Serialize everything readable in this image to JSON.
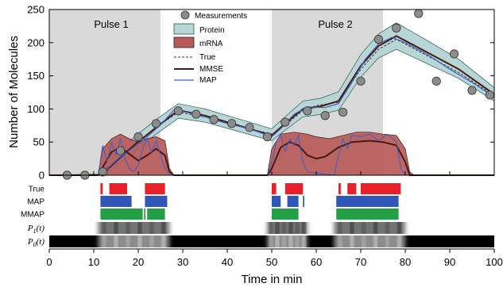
{
  "chart_data": {
    "type": "line",
    "ylabel": "Number of Molecules",
    "xlabel": "Time in min",
    "xlim": [
      0,
      100
    ],
    "ylim": [
      0,
      250
    ],
    "x_ticks": [
      "0",
      "10",
      "20",
      "30",
      "40",
      "50",
      "60",
      "70",
      "80",
      "90",
      "100"
    ],
    "y_ticks": [
      "0",
      "50",
      "100",
      "150",
      "200",
      "250"
    ],
    "pulses": [
      {
        "label": "Pulse 1",
        "start": 0,
        "end": 25
      },
      {
        "label": "Pulse 2",
        "start": 50,
        "end": 75
      }
    ],
    "legend": {
      "measurements": "Measurements",
      "protein": "Protein",
      "mrna": "mRNA",
      "true": "True",
      "mmse": "MMSE",
      "map": "MAP"
    },
    "colors": {
      "pulse_shade": "#d9d9d9",
      "protein_fill": "#b9d6d6",
      "mrna_fill": "#b85a5a",
      "measurement": "#8c8c8c",
      "mmse_line": "#4a1a12",
      "map_line": "#3a5fc8",
      "true_line": "#333333",
      "track_true": "#e8202a",
      "track_map": "#2f56b8",
      "track_mmap": "#23a046"
    },
    "measurements": [
      {
        "x": 4,
        "y": 0
      },
      {
        "x": 8,
        "y": 0
      },
      {
        "x": 12,
        "y": 5
      },
      {
        "x": 16,
        "y": 37
      },
      {
        "x": 20,
        "y": 58
      },
      {
        "x": 24,
        "y": 78
      },
      {
        "x": 29,
        "y": 97
      },
      {
        "x": 33,
        "y": 92
      },
      {
        "x": 37,
        "y": 84
      },
      {
        "x": 41,
        "y": 78
      },
      {
        "x": 45,
        "y": 72
      },
      {
        "x": 49,
        "y": 58
      },
      {
        "x": 53,
        "y": 80
      },
      {
        "x": 58,
        "y": 97
      },
      {
        "x": 62,
        "y": 90
      },
      {
        "x": 66,
        "y": 95
      },
      {
        "x": 70,
        "y": 142
      },
      {
        "x": 74,
        "y": 205
      },
      {
        "x": 78,
        "y": 222
      },
      {
        "x": 83,
        "y": 244
      },
      {
        "x": 87,
        "y": 142
      },
      {
        "x": 91,
        "y": 183
      },
      {
        "x": 95,
        "y": 128
      },
      {
        "x": 99,
        "y": 121
      }
    ],
    "protein_true": [
      {
        "x": 0,
        "y": 0
      },
      {
        "x": 12,
        "y": 0
      },
      {
        "x": 15,
        "y": 20
      },
      {
        "x": 20,
        "y": 50
      },
      {
        "x": 25,
        "y": 77
      },
      {
        "x": 29,
        "y": 95
      },
      {
        "x": 35,
        "y": 88
      },
      {
        "x": 42,
        "y": 75
      },
      {
        "x": 50,
        "y": 62
      },
      {
        "x": 53,
        "y": 75
      },
      {
        "x": 57,
        "y": 98
      },
      {
        "x": 60,
        "y": 105
      },
      {
        "x": 65,
        "y": 110
      },
      {
        "x": 70,
        "y": 160
      },
      {
        "x": 74,
        "y": 190
      },
      {
        "x": 78,
        "y": 205
      },
      {
        "x": 85,
        "y": 180
      },
      {
        "x": 92,
        "y": 155
      },
      {
        "x": 100,
        "y": 120
      }
    ],
    "protein_mmse": [
      {
        "x": 0,
        "y": 0
      },
      {
        "x": 11,
        "y": 0
      },
      {
        "x": 14,
        "y": 15
      },
      {
        "x": 19,
        "y": 45
      },
      {
        "x": 24,
        "y": 72
      },
      {
        "x": 29,
        "y": 98
      },
      {
        "x": 35,
        "y": 90
      },
      {
        "x": 42,
        "y": 76
      },
      {
        "x": 50,
        "y": 60
      },
      {
        "x": 53,
        "y": 78
      },
      {
        "x": 57,
        "y": 100
      },
      {
        "x": 61,
        "y": 104
      },
      {
        "x": 65,
        "y": 112
      },
      {
        "x": 70,
        "y": 165
      },
      {
        "x": 74,
        "y": 195
      },
      {
        "x": 78,
        "y": 210
      },
      {
        "x": 85,
        "y": 185
      },
      {
        "x": 92,
        "y": 160
      },
      {
        "x": 100,
        "y": 122
      }
    ],
    "protein_lower": [
      {
        "x": 0,
        "y": 0
      },
      {
        "x": 11,
        "y": 0
      },
      {
        "x": 14,
        "y": 8
      },
      {
        "x": 19,
        "y": 35
      },
      {
        "x": 24,
        "y": 62
      },
      {
        "x": 29,
        "y": 86
      },
      {
        "x": 35,
        "y": 80
      },
      {
        "x": 42,
        "y": 67
      },
      {
        "x": 50,
        "y": 52
      },
      {
        "x": 53,
        "y": 68
      },
      {
        "x": 57,
        "y": 88
      },
      {
        "x": 61,
        "y": 92
      },
      {
        "x": 65,
        "y": 98
      },
      {
        "x": 70,
        "y": 148
      },
      {
        "x": 74,
        "y": 177
      },
      {
        "x": 78,
        "y": 190
      },
      {
        "x": 85,
        "y": 168
      },
      {
        "x": 92,
        "y": 146
      },
      {
        "x": 100,
        "y": 112
      }
    ],
    "protein_upper": [
      {
        "x": 0,
        "y": 0
      },
      {
        "x": 11,
        "y": 2
      },
      {
        "x": 14,
        "y": 24
      },
      {
        "x": 19,
        "y": 57
      },
      {
        "x": 24,
        "y": 84
      },
      {
        "x": 29,
        "y": 108
      },
      {
        "x": 35,
        "y": 100
      },
      {
        "x": 42,
        "y": 86
      },
      {
        "x": 50,
        "y": 70
      },
      {
        "x": 53,
        "y": 88
      },
      {
        "x": 57,
        "y": 112
      },
      {
        "x": 61,
        "y": 116
      },
      {
        "x": 65,
        "y": 126
      },
      {
        "x": 70,
        "y": 182
      },
      {
        "x": 74,
        "y": 213
      },
      {
        "x": 78,
        "y": 230
      },
      {
        "x": 85,
        "y": 203
      },
      {
        "x": 92,
        "y": 175
      },
      {
        "x": 100,
        "y": 132
      }
    ],
    "protein_map": [
      {
        "x": 0,
        "y": 0
      },
      {
        "x": 11,
        "y": 0
      },
      {
        "x": 13,
        "y": 10
      },
      {
        "x": 16,
        "y": 28
      },
      {
        "x": 19,
        "y": 42
      },
      {
        "x": 22,
        "y": 58
      },
      {
        "x": 25,
        "y": 76
      },
      {
        "x": 28,
        "y": 98
      },
      {
        "x": 31,
        "y": 95
      },
      {
        "x": 35,
        "y": 88
      },
      {
        "x": 40,
        "y": 78
      },
      {
        "x": 45,
        "y": 70
      },
      {
        "x": 50,
        "y": 58
      },
      {
        "x": 52,
        "y": 70
      },
      {
        "x": 55,
        "y": 92
      },
      {
        "x": 58,
        "y": 103
      },
      {
        "x": 62,
        "y": 102
      },
      {
        "x": 65,
        "y": 108
      },
      {
        "x": 68,
        "y": 140
      },
      {
        "x": 71,
        "y": 175
      },
      {
        "x": 74,
        "y": 198
      },
      {
        "x": 77,
        "y": 208
      },
      {
        "x": 80,
        "y": 200
      },
      {
        "x": 85,
        "y": 182
      },
      {
        "x": 90,
        "y": 160
      },
      {
        "x": 95,
        "y": 140
      },
      {
        "x": 100,
        "y": 118
      }
    ],
    "mrna_upper": [
      {
        "x": 0,
        "y": 0
      },
      {
        "x": 11,
        "y": 0
      },
      {
        "x": 12,
        "y": 40
      },
      {
        "x": 14,
        "y": 55
      },
      {
        "x": 16,
        "y": 62
      },
      {
        "x": 18,
        "y": 55
      },
      {
        "x": 20,
        "y": 50
      },
      {
        "x": 22,
        "y": 55
      },
      {
        "x": 24,
        "y": 58
      },
      {
        "x": 26,
        "y": 52
      },
      {
        "x": 27,
        "y": 10
      },
      {
        "x": 28,
        "y": 0
      },
      {
        "x": 49,
        "y": 0
      },
      {
        "x": 50,
        "y": 40
      },
      {
        "x": 52,
        "y": 62
      },
      {
        "x": 55,
        "y": 65
      },
      {
        "x": 58,
        "y": 62
      },
      {
        "x": 60,
        "y": 58
      },
      {
        "x": 63,
        "y": 55
      },
      {
        "x": 66,
        "y": 60
      },
      {
        "x": 69,
        "y": 65
      },
      {
        "x": 72,
        "y": 65
      },
      {
        "x": 75,
        "y": 62
      },
      {
        "x": 78,
        "y": 60
      },
      {
        "x": 80,
        "y": 40
      },
      {
        "x": 81,
        "y": 5
      },
      {
        "x": 82,
        "y": 0
      },
      {
        "x": 100,
        "y": 0
      }
    ],
    "mrna_lower": [
      {
        "x": 0,
        "y": 0
      },
      {
        "x": 100,
        "y": 0
      }
    ],
    "mrna_mmse": [
      {
        "x": 0,
        "y": 0
      },
      {
        "x": 11,
        "y": 0
      },
      {
        "x": 12,
        "y": 12
      },
      {
        "x": 14,
        "y": 35
      },
      {
        "x": 16,
        "y": 42
      },
      {
        "x": 18,
        "y": 32
      },
      {
        "x": 20,
        "y": 22
      },
      {
        "x": 22,
        "y": 30
      },
      {
        "x": 24,
        "y": 40
      },
      {
        "x": 26,
        "y": 30
      },
      {
        "x": 27,
        "y": 5
      },
      {
        "x": 28,
        "y": 0
      },
      {
        "x": 49,
        "y": 0
      },
      {
        "x": 50,
        "y": 10
      },
      {
        "x": 52,
        "y": 42
      },
      {
        "x": 54,
        "y": 50
      },
      {
        "x": 56,
        "y": 45
      },
      {
        "x": 58,
        "y": 30
      },
      {
        "x": 60,
        "y": 25
      },
      {
        "x": 62,
        "y": 28
      },
      {
        "x": 65,
        "y": 42
      },
      {
        "x": 68,
        "y": 50
      },
      {
        "x": 72,
        "y": 52
      },
      {
        "x": 75,
        "y": 50
      },
      {
        "x": 78,
        "y": 45
      },
      {
        "x": 80,
        "y": 20
      },
      {
        "x": 81,
        "y": 0
      },
      {
        "x": 100,
        "y": 0
      }
    ],
    "mrna_map": [
      {
        "x": 0,
        "y": 0
      },
      {
        "x": 11,
        "y": 0
      },
      {
        "x": 12,
        "y": 45
      },
      {
        "x": 13,
        "y": 20
      },
      {
        "x": 14,
        "y": 50
      },
      {
        "x": 15,
        "y": 30
      },
      {
        "x": 16,
        "y": 55
      },
      {
        "x": 17,
        "y": 25
      },
      {
        "x": 18,
        "y": 10
      },
      {
        "x": 19,
        "y": 5
      },
      {
        "x": 20,
        "y": 15
      },
      {
        "x": 21,
        "y": 40
      },
      {
        "x": 22,
        "y": 55
      },
      {
        "x": 23,
        "y": 35
      },
      {
        "x": 24,
        "y": 52
      },
      {
        "x": 25,
        "y": 30
      },
      {
        "x": 26,
        "y": 10
      },
      {
        "x": 27,
        "y": 0
      },
      {
        "x": 49,
        "y": 0
      },
      {
        "x": 50,
        "y": 20
      },
      {
        "x": 51,
        "y": 50
      },
      {
        "x": 52,
        "y": 62
      },
      {
        "x": 53,
        "y": 35
      },
      {
        "x": 54,
        "y": 55
      },
      {
        "x": 55,
        "y": 45
      },
      {
        "x": 56,
        "y": 60
      },
      {
        "x": 57,
        "y": 20
      },
      {
        "x": 58,
        "y": 5
      },
      {
        "x": 64,
        "y": 0
      },
      {
        "x": 65,
        "y": 30
      },
      {
        "x": 66,
        "y": 55
      },
      {
        "x": 67,
        "y": 40
      },
      {
        "x": 68,
        "y": 60
      },
      {
        "x": 70,
        "y": 58
      },
      {
        "x": 72,
        "y": 62
      },
      {
        "x": 74,
        "y": 52
      },
      {
        "x": 76,
        "y": 62
      },
      {
        "x": 78,
        "y": 50
      },
      {
        "x": 79,
        "y": 10
      },
      {
        "x": 80,
        "y": 0
      },
      {
        "x": 100,
        "y": 0
      }
    ],
    "tracks": [
      {
        "label": "True",
        "color_key": "track_true",
        "segments": [
          [
            11.5,
            12
          ],
          [
            13.5,
            17.5
          ],
          [
            21.5,
            26
          ],
          [
            50,
            51
          ],
          [
            53,
            57
          ],
          [
            65,
            65.5
          ],
          [
            67,
            69
          ],
          [
            70,
            79
          ]
        ]
      },
      {
        "label": "MAP",
        "color_key": "track_map",
        "segments": [
          [
            11.5,
            18.5
          ],
          [
            21.5,
            26.5
          ],
          [
            50,
            52
          ],
          [
            53.5,
            56
          ],
          [
            57,
            57.3
          ],
          [
            64.5,
            78.5
          ]
        ]
      },
      {
        "label": "MMAP",
        "color_key": "track_mmap",
        "segments": [
          [
            11.5,
            21
          ],
          [
            21.3,
            21.6
          ],
          [
            22,
            26
          ],
          [
            50,
            56
          ],
          [
            64.5,
            78.5
          ]
        ]
      }
    ],
    "prob_tracks": [
      {
        "label_main": "P",
        "label_sub": "1",
        "label_tail": "(t)",
        "inverted": false
      },
      {
        "label_main": "P",
        "label_sub": "0",
        "label_tail": "(t)",
        "inverted": true
      }
    ],
    "prob_active_segments": [
      [
        11,
        27
      ],
      [
        49,
        58
      ],
      [
        64,
        80
      ]
    ]
  }
}
